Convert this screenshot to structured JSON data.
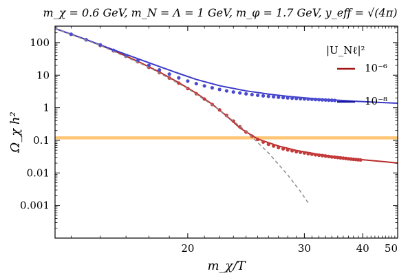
{
  "chart_data": {
    "type": "line",
    "title": "m_χ = 0.6 GeV, m_N = Λ = 1 GeV, m_φ = 1.7 GeV, y_eff = √(4π)",
    "xlabel": "m_χ/T",
    "ylabel": "Ω_χ h²",
    "xscale": "reciprocal",
    "yscale": "log",
    "xlim": [
      14.5,
      50
    ],
    "ylim": [
      0.0001,
      320
    ],
    "xticks": [
      20,
      30,
      40,
      50
    ],
    "xtick_labels": [
      "20",
      "30",
      "40",
      "50"
    ],
    "yticks": [
      0.001,
      0.01,
      0.1,
      1,
      10,
      100
    ],
    "ytick_labels": [
      "0.001",
      "0.01",
      "0.1",
      "1",
      "10",
      "100"
    ],
    "legend": {
      "title": "|U_Nℓ|²",
      "placement": "top-right",
      "entries": [
        {
          "label": "10⁻⁶",
          "color": "#a31414"
        },
        {
          "label": "10⁻⁸",
          "color": "#1a1aa0"
        }
      ]
    },
    "band": {
      "y": 0.12,
      "y_range": [
        0.107,
        0.133
      ],
      "color": "#ffb347"
    },
    "series": [
      {
        "name": "10⁻⁶",
        "style": "line",
        "color": "#b82a2a",
        "x": [
          14.5,
          15.5,
          16.5,
          17.5,
          18.5,
          19.5,
          20.5,
          21.5,
          22.5,
          23.5,
          25,
          27,
          29,
          32,
          35,
          38,
          42,
          46,
          50
        ],
        "y": [
          270,
          123,
          57,
          26.6,
          12.5,
          5.9,
          2.8,
          1.29,
          0.56,
          0.24,
          0.11,
          0.067,
          0.049,
          0.037,
          0.031,
          0.027,
          0.024,
          0.022,
          0.02
        ]
      },
      {
        "name": "10⁻⁸",
        "style": "line",
        "color": "#3a3ac8",
        "x": [
          14.5,
          15.5,
          16.5,
          17.5,
          18.5,
          19.5,
          20.5,
          22,
          24,
          26,
          28,
          31,
          34,
          38,
          42,
          46,
          50
        ],
        "y": [
          270,
          124,
          60,
          32,
          18.4,
          11.3,
          7.4,
          4.75,
          3.3,
          2.63,
          2.25,
          1.93,
          1.75,
          1.6,
          1.5,
          1.43,
          1.38
        ]
      },
      {
        "name": "10⁻⁶ points",
        "style": "points",
        "color": "#c43a3a",
        "x": [
          15.0,
          15.5,
          16.0,
          16.5,
          17.0,
          17.5,
          18.0,
          18.5,
          19.0,
          19.5,
          20.0,
          20.5,
          21.0,
          21.5,
          22.0,
          22.5,
          23.0,
          23.5,
          24.0,
          24.5,
          25.0,
          25.5,
          26.0,
          26.5,
          27.0,
          27.5,
          28.0,
          28.5,
          29.0,
          29.5,
          30.0,
          30.5,
          31.0,
          31.5,
          32.0,
          32.5,
          33.0,
          33.5,
          34.0,
          34.5,
          35.0,
          35.5,
          36.0,
          36.5,
          37.0,
          37.5,
          38.0,
          38.5,
          39.0,
          39.5
        ],
        "y": [
          180,
          122,
          82,
          56,
          38,
          26,
          17.5,
          12,
          8.2,
          5.7,
          3.9,
          2.7,
          1.85,
          1.26,
          0.86,
          0.58,
          0.39,
          0.26,
          0.18,
          0.135,
          0.107,
          0.089,
          0.076,
          0.067,
          0.06,
          0.055,
          0.051,
          0.048,
          0.045,
          0.043,
          0.041,
          0.039,
          0.0375,
          0.036,
          0.035,
          0.034,
          0.033,
          0.032,
          0.031,
          0.0304,
          0.0297,
          0.029,
          0.0284,
          0.0278,
          0.0272,
          0.0267,
          0.0262,
          0.0258,
          0.0254,
          0.025
        ]
      },
      {
        "name": "10⁻⁸ points",
        "style": "points",
        "color": "#4a4ad0",
        "x": [
          15.0,
          15.5,
          16.0,
          16.5,
          17.0,
          17.5,
          18.0,
          18.5,
          19.0,
          19.5,
          20.0,
          20.5,
          21.0,
          21.5,
          22.0,
          22.5,
          23.0,
          23.5,
          24.0,
          24.5,
          25.0,
          25.5,
          26.0,
          26.5,
          27.0,
          27.5,
          28.0,
          28.5,
          29.0,
          29.5,
          30.0,
          30.5,
          31.0,
          31.5,
          32.0,
          32.5,
          33.0,
          33.5,
          34.0,
          34.5
        ],
        "y": [
          180,
          122,
          85,
          58,
          40,
          28,
          20,
          14.5,
          10.8,
          8.3,
          6.6,
          5.5,
          4.7,
          4.1,
          3.65,
          3.3,
          3.05,
          2.85,
          2.68,
          2.54,
          2.42,
          2.32,
          2.24,
          2.17,
          2.11,
          2.06,
          2.01,
          1.97,
          1.93,
          1.9,
          1.87,
          1.84,
          1.82,
          1.79,
          1.77,
          1.75,
          1.73,
          1.71,
          1.7,
          1.68
        ]
      },
      {
        "name": "equilibrium",
        "style": "dashed",
        "color": "#8c8c8c",
        "x": [
          14.5,
          16,
          18,
          20,
          22,
          24,
          26,
          28,
          29.5,
          30.5
        ],
        "y": [
          270,
          82,
          17.5,
          3.9,
          0.86,
          0.19,
          0.041,
          0.0087,
          0.0027,
          0.0012
        ]
      }
    ]
  }
}
